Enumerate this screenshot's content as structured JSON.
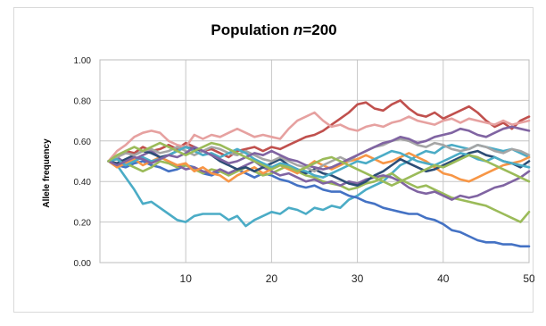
{
  "chart_data": {
    "type": "line",
    "title": "Population ",
    "title_var": "n",
    "title_value": "=200",
    "xlabel": "",
    "ylabel": "Allele frequency",
    "xlim": [
      0,
      50
    ],
    "ylim": [
      0,
      1
    ],
    "x_ticks": [
      "10",
      "20",
      "30",
      "40",
      "50"
    ],
    "y_ticks": [
      "0.00",
      "0.20",
      "0.40",
      "0.60",
      "0.80",
      "1.00"
    ],
    "grid": true,
    "legend": "none",
    "series_colors": [
      "#4472C4",
      "#C0504D",
      "#9BBB59",
      "#8064A2",
      "#4BACC6",
      "#F79646",
      "#2C4D75",
      "#772C2A",
      "#5F7530",
      "#4BACC6",
      "#E6A1A0",
      "#A5A5A5"
    ],
    "series": [
      {
        "color": "#4BACC6",
        "values": [
          0.5,
          0.48,
          0.42,
          0.36,
          0.29,
          0.3,
          0.27,
          0.24,
          0.21,
          0.2,
          0.23,
          0.24,
          0.24,
          0.24,
          0.21,
          0.23,
          0.18,
          0.21,
          0.23,
          0.25,
          0.24,
          0.27,
          0.26,
          0.24,
          0.27,
          0.26,
          0.28,
          0.27,
          0.31,
          0.33,
          0.36,
          0.38,
          0.4,
          0.44,
          0.48,
          0.5,
          0.53,
          0.55,
          0.54,
          0.57,
          0.58,
          0.57,
          0.56,
          0.58,
          0.57,
          0.56,
          0.55,
          0.56,
          0.54,
          0.52
        ]
      },
      {
        "color": "#4472C4",
        "values": [
          0.5,
          0.48,
          0.47,
          0.49,
          0.5,
          0.48,
          0.47,
          0.45,
          0.46,
          0.48,
          0.47,
          0.44,
          0.43,
          0.45,
          0.44,
          0.46,
          0.44,
          0.42,
          0.44,
          0.43,
          0.41,
          0.4,
          0.38,
          0.37,
          0.38,
          0.36,
          0.35,
          0.35,
          0.33,
          0.32,
          0.3,
          0.29,
          0.27,
          0.26,
          0.25,
          0.24,
          0.24,
          0.22,
          0.21,
          0.19,
          0.16,
          0.15,
          0.13,
          0.11,
          0.1,
          0.1,
          0.09,
          0.09,
          0.08,
          0.08
        ]
      },
      {
        "color": "#C0504D",
        "values": [
          0.5,
          0.52,
          0.55,
          0.54,
          0.57,
          0.55,
          0.56,
          0.58,
          0.56,
          0.59,
          0.57,
          0.55,
          0.56,
          0.54,
          0.52,
          0.55,
          0.56,
          0.57,
          0.55,
          0.57,
          0.56,
          0.58,
          0.6,
          0.62,
          0.63,
          0.65,
          0.68,
          0.71,
          0.74,
          0.78,
          0.79,
          0.76,
          0.75,
          0.78,
          0.8,
          0.76,
          0.73,
          0.72,
          0.74,
          0.71,
          0.73,
          0.75,
          0.77,
          0.74,
          0.7,
          0.67,
          0.69,
          0.66,
          0.7,
          0.72
        ]
      },
      {
        "color": "#E6A1A0",
        "values": [
          0.5,
          0.55,
          0.58,
          0.62,
          0.64,
          0.65,
          0.64,
          0.6,
          0.58,
          0.57,
          0.63,
          0.61,
          0.63,
          0.62,
          0.64,
          0.66,
          0.64,
          0.62,
          0.63,
          0.62,
          0.61,
          0.66,
          0.7,
          0.72,
          0.74,
          0.7,
          0.67,
          0.68,
          0.66,
          0.65,
          0.67,
          0.68,
          0.67,
          0.69,
          0.7,
          0.72,
          0.7,
          0.69,
          0.68,
          0.7,
          0.71,
          0.69,
          0.71,
          0.7,
          0.69,
          0.68,
          0.7,
          0.68,
          0.69,
          0.7
        ]
      },
      {
        "color": "#9BBB59",
        "values": [
          0.5,
          0.51,
          0.49,
          0.47,
          0.45,
          0.47,
          0.5,
          0.49,
          0.47,
          0.48,
          0.46,
          0.44,
          0.46,
          0.45,
          0.43,
          0.45,
          0.47,
          0.45,
          0.43,
          0.44,
          0.46,
          0.48,
          0.45,
          0.43,
          0.42,
          0.4,
          0.39,
          0.38,
          0.36,
          0.37,
          0.39,
          0.4,
          0.42,
          0.44,
          0.41,
          0.39,
          0.37,
          0.38,
          0.36,
          0.34,
          0.32,
          0.31,
          0.3,
          0.29,
          0.28,
          0.26,
          0.24,
          0.22,
          0.2,
          0.25
        ]
      },
      {
        "color": "#8064A2",
        "values": [
          0.5,
          0.52,
          0.49,
          0.51,
          0.53,
          0.55,
          0.52,
          0.5,
          0.48,
          0.46,
          0.47,
          0.45,
          0.44,
          0.46,
          0.44,
          0.46,
          0.48,
          0.5,
          0.47,
          0.45,
          0.43,
          0.44,
          0.42,
          0.4,
          0.41,
          0.39,
          0.4,
          0.38,
          0.4,
          0.39,
          0.41,
          0.42,
          0.43,
          0.42,
          0.4,
          0.37,
          0.35,
          0.34,
          0.35,
          0.33,
          0.31,
          0.33,
          0.32,
          0.33,
          0.35,
          0.37,
          0.38,
          0.4,
          0.42,
          0.45
        ]
      },
      {
        "color": "#F79646",
        "values": [
          0.5,
          0.47,
          0.49,
          0.51,
          0.48,
          0.5,
          0.52,
          0.5,
          0.48,
          0.49,
          0.45,
          0.47,
          0.44,
          0.43,
          0.4,
          0.43,
          0.45,
          0.47,
          0.44,
          0.46,
          0.48,
          0.46,
          0.44,
          0.47,
          0.5,
          0.48,
          0.46,
          0.48,
          0.5,
          0.51,
          0.53,
          0.51,
          0.49,
          0.5,
          0.52,
          0.54,
          0.52,
          0.5,
          0.47,
          0.44,
          0.43,
          0.41,
          0.4,
          0.42,
          0.44,
          0.46,
          0.48,
          0.49,
          0.5,
          0.52
        ]
      },
      {
        "color": "#2C4D75",
        "values": [
          0.5,
          0.49,
          0.51,
          0.53,
          0.55,
          0.54,
          0.52,
          0.53,
          0.55,
          0.57,
          0.56,
          0.55,
          0.53,
          0.5,
          0.48,
          0.46,
          0.47,
          0.45,
          0.47,
          0.49,
          0.51,
          0.48,
          0.46,
          0.44,
          0.46,
          0.44,
          0.43,
          0.41,
          0.39,
          0.38,
          0.4,
          0.43,
          0.45,
          0.48,
          0.51,
          0.49,
          0.47,
          0.45,
          0.46,
          0.48,
          0.5,
          0.52,
          0.54,
          0.55,
          0.53,
          0.52,
          0.5,
          0.49,
          0.47,
          0.5
        ]
      },
      {
        "color": "#A5A5A5",
        "values": [
          0.5,
          0.52,
          0.54,
          0.53,
          0.55,
          0.56,
          0.54,
          0.55,
          0.57,
          0.55,
          0.53,
          0.55,
          0.57,
          0.56,
          0.54,
          0.53,
          0.55,
          0.53,
          0.51,
          0.5,
          0.52,
          0.5,
          0.48,
          0.47,
          0.45,
          0.48,
          0.5,
          0.52,
          0.5,
          0.53,
          0.55,
          0.57,
          0.58,
          0.6,
          0.61,
          0.6,
          0.58,
          0.57,
          0.59,
          0.58,
          0.56,
          0.55,
          0.56,
          0.58,
          0.57,
          0.55,
          0.54,
          0.56,
          0.55,
          0.53
        ]
      },
      {
        "color": "#4BACC6",
        "values": [
          0.5,
          0.51,
          0.48,
          0.5,
          0.52,
          0.5,
          0.51,
          0.53,
          0.55,
          0.57,
          0.55,
          0.53,
          0.54,
          0.52,
          0.54,
          0.56,
          0.54,
          0.51,
          0.49,
          0.47,
          0.49,
          0.48,
          0.46,
          0.45,
          0.43,
          0.42,
          0.44,
          0.46,
          0.48,
          0.5,
          0.49,
          0.51,
          0.53,
          0.55,
          0.54,
          0.52,
          0.5,
          0.49,
          0.48,
          0.5,
          0.52,
          0.54,
          0.53,
          0.51,
          0.5,
          0.52,
          0.5,
          0.49,
          0.48,
          0.47
        ]
      },
      {
        "color": "#8064A2",
        "values": [
          0.5,
          0.48,
          0.5,
          0.52,
          0.51,
          0.49,
          0.51,
          0.53,
          0.52,
          0.54,
          0.57,
          0.55,
          0.53,
          0.51,
          0.49,
          0.5,
          0.52,
          0.54,
          0.53,
          0.55,
          0.53,
          0.51,
          0.5,
          0.48,
          0.47,
          0.46,
          0.47,
          0.49,
          0.51,
          0.53,
          0.55,
          0.57,
          0.59,
          0.6,
          0.62,
          0.61,
          0.59,
          0.6,
          0.62,
          0.63,
          0.64,
          0.66,
          0.65,
          0.63,
          0.62,
          0.64,
          0.66,
          0.67,
          0.66,
          0.65
        ]
      },
      {
        "color": "#9BBB59",
        "values": [
          0.5,
          0.53,
          0.55,
          0.57,
          0.55,
          0.57,
          0.59,
          0.57,
          0.55,
          0.53,
          0.55,
          0.57,
          0.59,
          0.58,
          0.56,
          0.54,
          0.52,
          0.5,
          0.48,
          0.46,
          0.48,
          0.47,
          0.45,
          0.47,
          0.49,
          0.51,
          0.52,
          0.5,
          0.48,
          0.46,
          0.44,
          0.42,
          0.4,
          0.38,
          0.4,
          0.42,
          0.44,
          0.46,
          0.48,
          0.47,
          0.49,
          0.51,
          0.53,
          0.52,
          0.5,
          0.48,
          0.46,
          0.44,
          0.42,
          0.4
        ]
      }
    ]
  }
}
